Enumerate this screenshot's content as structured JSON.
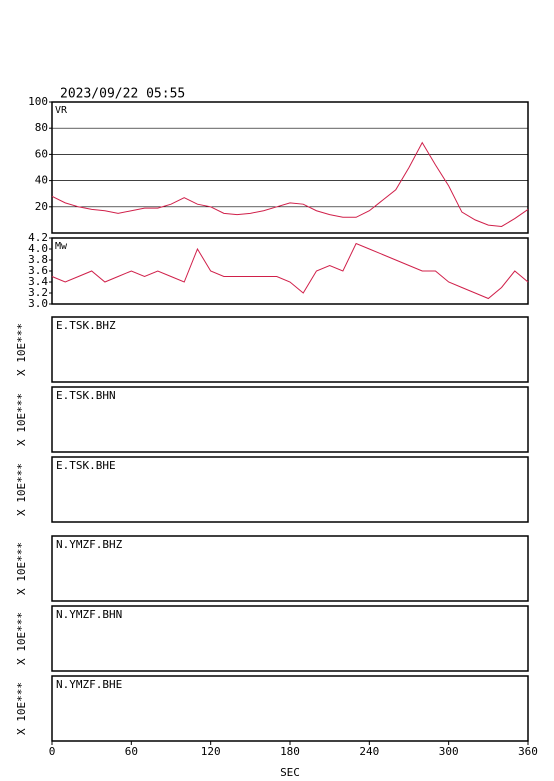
{
  "header": {
    "date": "2023/09/22 05:55"
  },
  "x_axis": {
    "label": "SEC",
    "xlim": [
      0,
      360
    ],
    "xticks": [
      0,
      60,
      120,
      180,
      240,
      300,
      360
    ]
  },
  "chart_data": [
    {
      "type": "line",
      "series": [
        {
          "name": "VR",
          "color": "#d0204a",
          "values": [
            28,
            23,
            20,
            18,
            17,
            15,
            17,
            19,
            19,
            22,
            27,
            22,
            20,
            15,
            14,
            15,
            17,
            20,
            23,
            22,
            17,
            14,
            12,
            12,
            17,
            25,
            33,
            50,
            69,
            52,
            36,
            16,
            10,
            6,
            5,
            11,
            18
          ]
        }
      ],
      "x": [
        0,
        10,
        20,
        30,
        40,
        50,
        60,
        70,
        80,
        90,
        100,
        110,
        120,
        130,
        140,
        150,
        160,
        170,
        180,
        190,
        200,
        210,
        220,
        230,
        240,
        250,
        260,
        270,
        280,
        290,
        300,
        310,
        320,
        330,
        340,
        350,
        360
      ],
      "ylim": [
        0,
        100
      ],
      "yticks": [
        20,
        40,
        60,
        80,
        100
      ],
      "grid": true
    },
    {
      "type": "line",
      "series": [
        {
          "name": "Mw",
          "color": "#d0204a",
          "values": [
            3.5,
            3.4,
            3.5,
            3.6,
            3.4,
            3.5,
            3.6,
            3.5,
            3.6,
            3.5,
            3.4,
            4.0,
            3.6,
            3.5,
            3.5,
            3.5,
            3.5,
            3.5,
            3.4,
            3.2,
            3.6,
            3.7,
            3.6,
            4.1,
            4.0,
            3.9,
            3.8,
            3.7,
            3.6,
            3.6,
            3.4,
            3.3,
            3.2,
            3.1,
            3.3,
            3.6,
            3.4
          ]
        }
      ],
      "x": [
        0,
        10,
        20,
        30,
        40,
        50,
        60,
        70,
        80,
        90,
        100,
        110,
        120,
        130,
        140,
        150,
        160,
        170,
        180,
        190,
        200,
        210,
        220,
        230,
        240,
        250,
        260,
        270,
        280,
        290,
        300,
        310,
        320,
        330,
        340,
        350,
        360
      ],
      "ylim": [
        3.0,
        4.2
      ],
      "yticks": [
        {
          "value": 3.0,
          "label": "3.0"
        },
        3.2,
        3.4,
        3.6,
        3.8,
        {
          "value": 4.0,
          "label": "4.0"
        },
        4.2
      ],
      "grid": false
    },
    {
      "type": "trace",
      "title": "E.TSK.BHZ",
      "ylabel": "X 10E***"
    },
    {
      "type": "trace",
      "title": "E.TSK.BHN",
      "ylabel": "X 10E***"
    },
    {
      "type": "trace",
      "title": "E.TSK.BHE",
      "ylabel": "X 10E***"
    },
    {
      "type": "trace",
      "title": "N.YMZF.BHZ",
      "ylabel": "X 10E***"
    },
    {
      "type": "trace",
      "title": "N.YMZF.BHN",
      "ylabel": "X 10E***"
    },
    {
      "type": "trace",
      "title": "N.YMZF.BHE",
      "ylabel": "X 10E***"
    }
  ]
}
